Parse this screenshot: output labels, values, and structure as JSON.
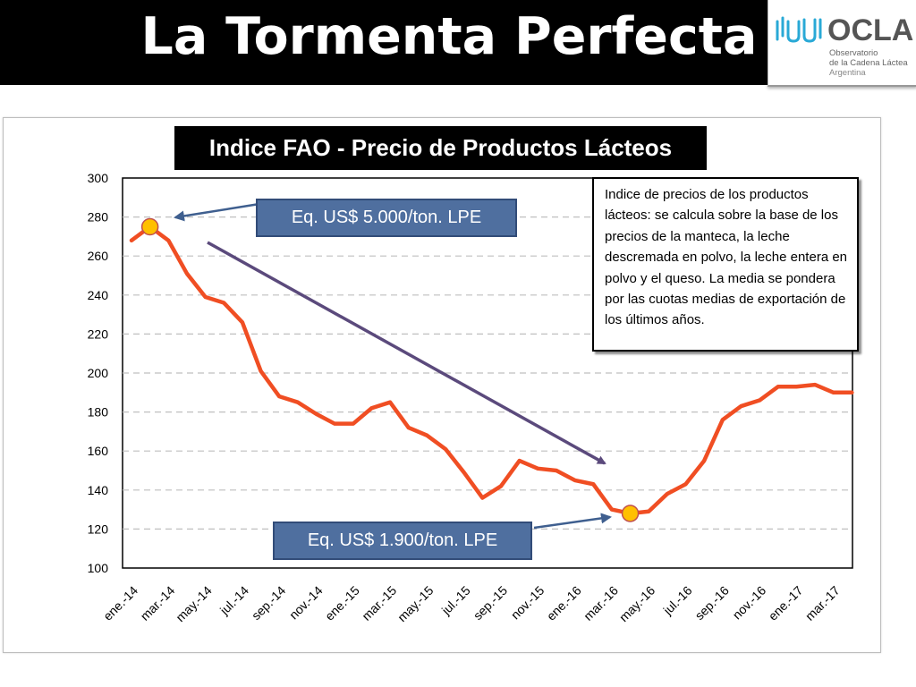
{
  "slide": {
    "title": "La Tormenta Perfecta"
  },
  "logo": {
    "brand": "OCLA",
    "line1": "Observatorio",
    "line2": "de la Cadena Láctea",
    "line3": "Argentina"
  },
  "callouts": {
    "high": "Eq. US$ 5.000/ton. LPE",
    "low": "Eq. US$ 1.900/ton. LPE"
  },
  "note": {
    "text": "Indice de precios de los productos lácteos: se calcula sobre la base de los precios de la manteca, la leche descremada en polvo, la leche entera en polvo y el queso. La media se pondera por las cuotas medias de exportación de los últimos años."
  },
  "colors": {
    "line": "#f04e23",
    "marker_fill": "#ffc000",
    "marker_stroke": "#c0504d",
    "arrow": "#5b4a7c",
    "callout_arrow": "#3f5f8f",
    "callout_bg": "#4f6f9f"
  },
  "chart_data": {
    "type": "line",
    "title": "Indice FAO - Precio de Productos Lácteos",
    "ylim": [
      100,
      300
    ],
    "y_ticks": [
      "100",
      "120",
      "140",
      "160",
      "180",
      "200",
      "220",
      "240",
      "260",
      "280",
      "300"
    ],
    "x_tick_labels": [
      "ene.-14",
      "mar.-14",
      "may.-14",
      "jul.-14",
      "sep.-14",
      "nov.-14",
      "ene.-15",
      "mar.-15",
      "may.-15",
      "jul.-15",
      "sep.-15",
      "nov.-15",
      "ene.-16",
      "mar.-16",
      "may.-16",
      "jul.-16",
      "sep.-16",
      "nov.-16",
      "ene.-17",
      "mar.-17"
    ],
    "grid": "horizontal dashed",
    "series": [
      {
        "values": [
          268,
          275,
          268,
          251,
          239,
          236,
          226,
          201,
          188,
          185,
          179,
          174,
          174,
          182,
          185,
          172,
          168,
          161,
          149,
          136,
          142,
          155,
          151,
          150,
          145,
          143,
          130,
          128,
          129,
          138,
          143,
          155,
          176,
          183,
          186,
          193,
          193,
          194,
          190,
          190
        ]
      }
    ],
    "highlight_points": [
      {
        "month_index": 1,
        "value": 275
      },
      {
        "month_index": 27,
        "value": 128
      }
    ]
  }
}
